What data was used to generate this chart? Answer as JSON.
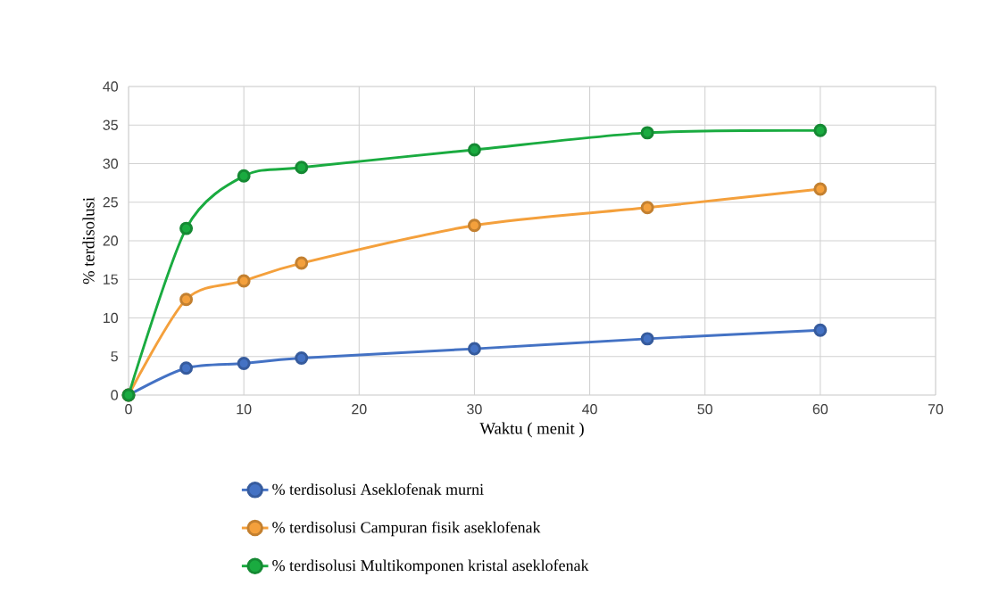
{
  "chart_data": {
    "type": "line",
    "xlabel": "Waktu ( menit )",
    "ylabel": "% terdisolusi",
    "x": [
      0,
      5,
      10,
      15,
      30,
      45,
      60
    ],
    "series": [
      {
        "name": "% terdisolusi  Aseklofenak murni",
        "color": "#4472c4",
        "values": [
          0,
          3.5,
          4.1,
          4.8,
          6.0,
          7.3,
          8.4
        ]
      },
      {
        "name": "% terdisolusi  Campuran fisik aseklofenak",
        "color": "#f4a03c",
        "values": [
          0,
          12.4,
          14.8,
          17.1,
          22.0,
          24.3,
          26.7
        ]
      },
      {
        "name": "% terdisolusi  Multikomponen kristal aseklofenak",
        "color": "#1aab40",
        "values": [
          0,
          21.6,
          28.4,
          29.5,
          31.8,
          34.0,
          34.3
        ]
      }
    ],
    "xlim": [
      0,
      70
    ],
    "xticks": [
      0,
      10,
      20,
      30,
      40,
      50,
      60,
      70
    ],
    "ylim": [
      0,
      40
    ],
    "yticks": [
      0,
      5,
      10,
      15,
      20,
      25,
      30,
      35,
      40
    ],
    "grid": true,
    "legend": "bottom",
    "marker": "circle",
    "line_style": "solid"
  }
}
